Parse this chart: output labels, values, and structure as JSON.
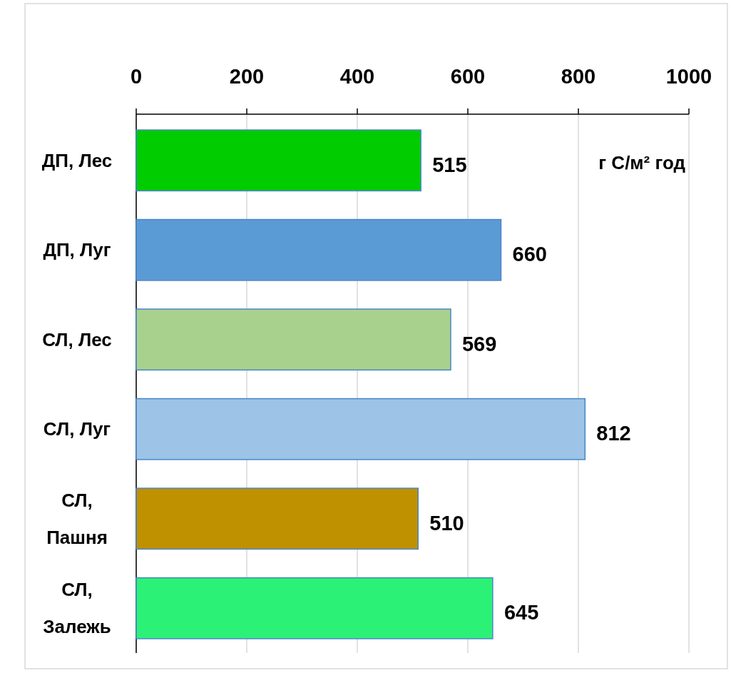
{
  "chart_data": {
    "type": "bar",
    "orientation": "horizontal",
    "categories": [
      "ДП, Лес",
      "ДП, Луг",
      "СЛ, Лес",
      "СЛ, Луг",
      "СЛ, Пашня",
      "СЛ, Залежь"
    ],
    "values": [
      515,
      660,
      569,
      812,
      510,
      645
    ],
    "colors": [
      "#00cc00",
      "#5b9bd5",
      "#a9d18e",
      "#9dc3e6",
      "#bf9000",
      "#2bf276"
    ],
    "xlim": [
      0,
      1000
    ],
    "xticks": [
      0,
      200,
      400,
      600,
      800,
      1000
    ],
    "grid": "x",
    "data_labels": true,
    "annotations": [
      "г C/м² год"
    ]
  }
}
